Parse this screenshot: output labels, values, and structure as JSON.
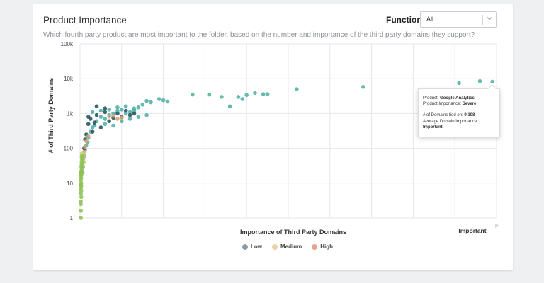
{
  "card": {
    "title": "Product Importance",
    "subtitle": "Which fourth party product are most important to the folder, based on the number and importance of the third party domains they support?"
  },
  "filter": {
    "label": "Function",
    "value": "All"
  },
  "tooltip": {
    "product_label": "Product:",
    "product_value": "Google Analytics",
    "importance_label": "Product Importance:",
    "importance_value": "Severe",
    "domains_label": "# of Domains tied on:",
    "domains_value": "9,198",
    "avg_label": "Average Domain Importance:",
    "avg_value": "Important"
  },
  "legend": [
    {
      "label": "Low",
      "color": "#8e9aac"
    },
    {
      "label": "Medium",
      "color": "#ead3a8"
    },
    {
      "label": "High",
      "color": "#e7a58d"
    }
  ],
  "chart_data": {
    "type": "scatter",
    "ylabel": "# of Third Party Domains",
    "xlabel": "Importance of Third Party Domains",
    "x_end_label": "Important",
    "y_scale": "log",
    "y_ticks": [
      "1",
      "10",
      "100",
      "1k",
      "10k",
      "100k"
    ],
    "ylim": [
      1,
      100000
    ],
    "xlim": [
      0,
      1
    ],
    "grid": true,
    "colors": {
      "green": "#8cc152",
      "teal": "#4aaea3",
      "dark": "#1f4e5a",
      "orange": "#d9a071",
      "yellow": "#c9d36a"
    },
    "series": [
      {
        "color": "teal",
        "points": [
          [
            0.27,
            3500
          ],
          [
            0.31,
            3500
          ],
          [
            0.34,
            3000
          ],
          [
            0.36,
            1600
          ],
          [
            0.38,
            3000
          ],
          [
            0.39,
            2600
          ],
          [
            0.4,
            3400
          ],
          [
            0.42,
            3900
          ],
          [
            0.44,
            3600
          ],
          [
            0.45,
            3600
          ],
          [
            0.52,
            5000
          ],
          [
            0.68,
            5800
          ],
          [
            0.91,
            7500
          ],
          [
            0.96,
            8500
          ],
          [
            0.99,
            8200
          ],
          [
            0.2,
            2400
          ],
          [
            0.21,
            2200
          ],
          [
            0.19,
            2600
          ],
          [
            0.17,
            2100
          ],
          [
            0.16,
            2300
          ],
          [
            0.15,
            1800
          ],
          [
            0.14,
            1500
          ],
          [
            0.13,
            1400
          ],
          [
            0.12,
            1100
          ],
          [
            0.11,
            1000
          ],
          [
            0.1,
            1300
          ],
          [
            0.09,
            1200
          ],
          [
            0.08,
            1000
          ],
          [
            0.07,
            900
          ],
          [
            0.06,
            700
          ],
          [
            0.05,
            800
          ],
          [
            0.04,
            600
          ],
          [
            0.035,
            450
          ],
          [
            0.03,
            400
          ],
          [
            0.025,
            300
          ],
          [
            0.02,
            200
          ],
          [
            0.018,
            150
          ],
          [
            0.015,
            120
          ],
          [
            0.012,
            90
          ],
          [
            0.01,
            60
          ],
          [
            0.008,
            40
          ],
          [
            0.007,
            30
          ],
          [
            0.006,
            20
          ],
          [
            0.03,
            1100
          ],
          [
            0.05,
            1200
          ],
          [
            0.07,
            1300
          ],
          [
            0.09,
            1500
          ],
          [
            0.11,
            1600
          ],
          [
            0.13,
            1200
          ],
          [
            0.06,
            500
          ],
          [
            0.08,
            450
          ],
          [
            0.1,
            600
          ],
          [
            0.12,
            700
          ],
          [
            0.14,
            800
          ],
          [
            0.16,
            900
          ]
        ]
      },
      {
        "color": "dark",
        "points": [
          [
            0.04,
            900
          ],
          [
            0.06,
            1100
          ],
          [
            0.08,
            750
          ],
          [
            0.1,
            800
          ],
          [
            0.12,
            900
          ],
          [
            0.13,
            1000
          ],
          [
            0.05,
            400
          ],
          [
            0.03,
            300
          ],
          [
            0.02,
            500
          ],
          [
            0.015,
            250
          ],
          [
            0.012,
            180
          ],
          [
            0.01,
            100
          ],
          [
            0.02,
            800
          ],
          [
            0.07,
            600
          ],
          [
            0.09,
            1000
          ],
          [
            0.11,
            1200
          ],
          [
            0.06,
            1400
          ],
          [
            0.04,
            1600
          ],
          [
            0.025,
            700
          ],
          [
            0.035,
            550
          ]
        ]
      },
      {
        "color": "orange",
        "points": [
          [
            0.08,
            850
          ],
          [
            0.09,
            700
          ],
          [
            0.1,
            760
          ],
          [
            0.07,
            820
          ],
          [
            0.02,
            220
          ],
          [
            0.015,
            160
          ],
          [
            0.012,
            110
          ],
          [
            0.01,
            80
          ],
          [
            0.008,
            50
          ],
          [
            0.006,
            30
          ]
        ]
      },
      {
        "color": "yellow",
        "points": [
          [
            0.004,
            70
          ],
          [
            0.005,
            45
          ],
          [
            0.006,
            35
          ],
          [
            0.004,
            25
          ],
          [
            0.005,
            18
          ],
          [
            0.008,
            60
          ],
          [
            0.01,
            40
          ]
        ]
      },
      {
        "color": "green",
        "points": [
          [
            0.002,
            1
          ],
          [
            0.002,
            1.6
          ],
          [
            0.002,
            2.5
          ],
          [
            0.002,
            3
          ],
          [
            0.003,
            4
          ],
          [
            0.002,
            5
          ],
          [
            0.003,
            6
          ],
          [
            0.002,
            7
          ],
          [
            0.003,
            8
          ],
          [
            0.002,
            9
          ],
          [
            0.003,
            10
          ],
          [
            0.002,
            12
          ],
          [
            0.003,
            14
          ],
          [
            0.002,
            16
          ],
          [
            0.003,
            18
          ],
          [
            0.002,
            20
          ],
          [
            0.003,
            22
          ],
          [
            0.004,
            26
          ],
          [
            0.003,
            30
          ],
          [
            0.004,
            34
          ],
          [
            0.004,
            40
          ],
          [
            0.005,
            48
          ],
          [
            0.004,
            55
          ],
          [
            0.005,
            62
          ]
        ]
      }
    ]
  }
}
